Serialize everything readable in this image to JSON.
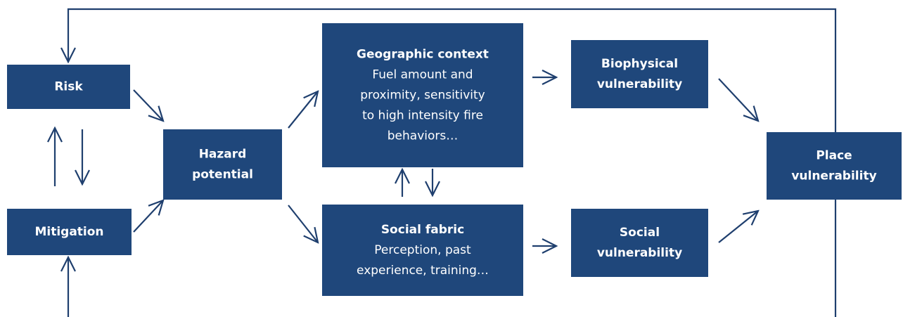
{
  "nodes": [
    {
      "title": [
        "Risk"
      ],
      "body": []
    },
    {
      "title": [
        "Mitigation"
      ],
      "body": []
    },
    {
      "title": [
        "Hazard",
        "potential"
      ],
      "body": []
    },
    {
      "title": [
        "Geographic context"
      ],
      "body": [
        "Fuel amount and",
        "proximity, sensitivity",
        "to high intensity  fire",
        "behaviors…"
      ]
    },
    {
      "title": [
        "Social fabric"
      ],
      "body": [
        "Perception, past",
        "experience, training…"
      ]
    },
    {
      "title": [
        "Biophysical",
        "vulnerability"
      ],
      "body": []
    },
    {
      "title": [
        "Social",
        "vulnerability"
      ],
      "body": []
    },
    {
      "title": [
        "Place",
        "vulnerability"
      ],
      "body": []
    }
  ]
}
